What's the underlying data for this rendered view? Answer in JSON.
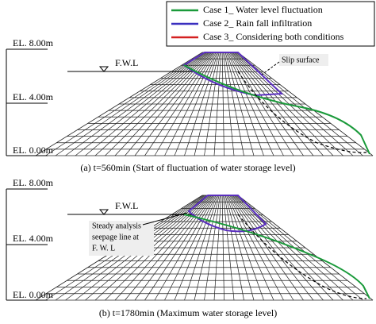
{
  "legend": [
    {
      "label": "Case 1_ Water level fluctuation"
    },
    {
      "label": "Case 2_ Rain fall infiltration"
    },
    {
      "label": "Case 3_ Considering both conditions"
    }
  ],
  "panels": [
    {
      "elevations": [
        "EL. 8.00m",
        "EL. 4.00m",
        "EL. 0.00m"
      ],
      "water_label": "F.W.L",
      "annotation": [
        "Slip surface"
      ],
      "caption": "(a) t=560min (Start of fluctuation of water storage level)"
    },
    {
      "elevations": [
        "EL. 8.00m",
        "EL. 4.00m",
        "EL. 0.00m"
      ],
      "water_label": "F.W.L",
      "annotation": [
        "Steady analysis",
        "seepage line at",
        "F. W. L"
      ],
      "caption": "(b) t=1780min (Maximum water storage level)"
    }
  ]
}
